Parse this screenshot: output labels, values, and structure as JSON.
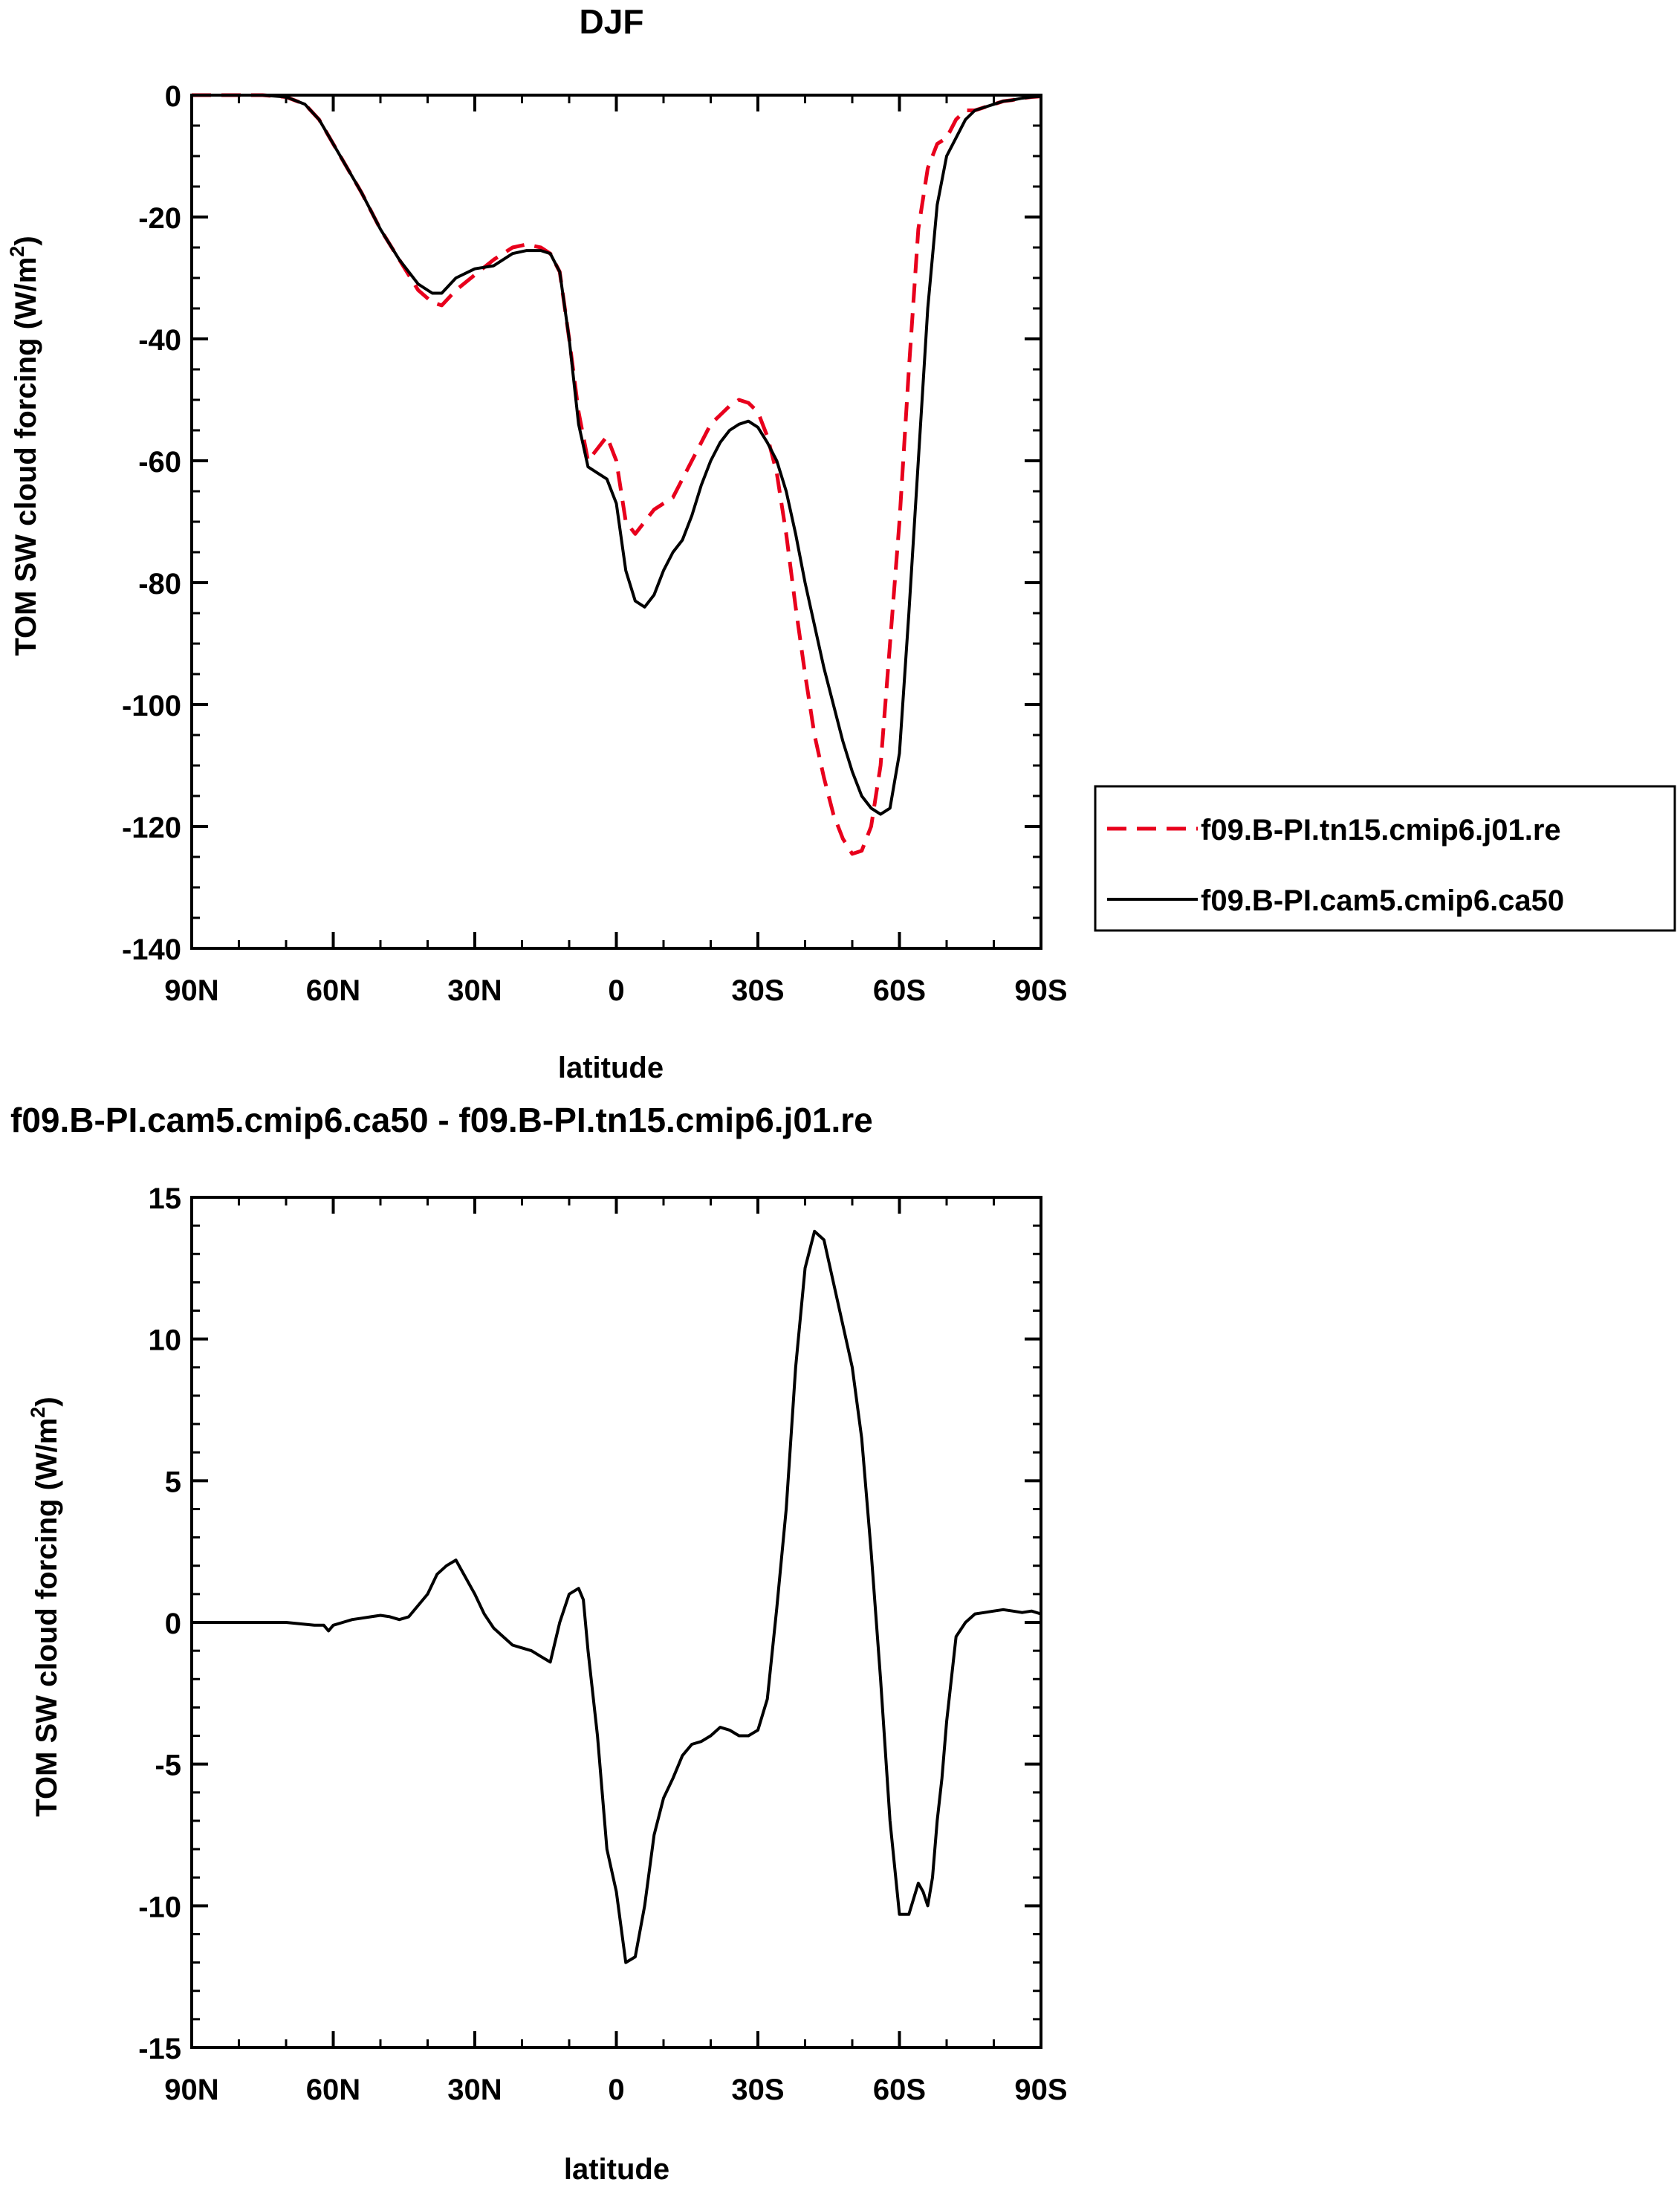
{
  "legend_entries": [
    "f09.B-PI.tn15.cmip6.j01.re",
    "f09.B-PI.cam5.cmip6.ca50"
  ],
  "colors": {
    "series_1": "#e8001c",
    "series_2": "#000000",
    "axes": "#000000"
  },
  "chart_data": [
    {
      "type": "line",
      "title": "DJF",
      "xlabel": "latitude",
      "ylabel": "TOM SW cloud forcing (W/m²)",
      "ylabel_base": "TOM SW cloud forcing (W/m",
      "ylabel_sup": "2",
      "ylabel_end": ")",
      "xlim": [
        90,
        -90
      ],
      "ylim": [
        -140,
        0
      ],
      "x_ticks": [
        90,
        60,
        30,
        0,
        -30,
        -60,
        -90
      ],
      "x_tick_labels": [
        "90N",
        "60N",
        "30N",
        "0",
        "30S",
        "60S",
        "90S"
      ],
      "y_ticks": [
        0,
        -20,
        -40,
        -60,
        -80,
        -100,
        -120,
        -140
      ],
      "y_tick_labels": [
        "0",
        "-20",
        "-40",
        "-60",
        "-80",
        "-100",
        "-120",
        "-140"
      ],
      "legend_position": "right",
      "series": [
        {
          "name": "f09.B-PI.tn15.cmip6.j01.re",
          "style": "dashed",
          "x": [
            90,
            80,
            75,
            70,
            66,
            63,
            60,
            57,
            54,
            50,
            46,
            42,
            39,
            37,
            34,
            30,
            26,
            22,
            19,
            16,
            14,
            12,
            10,
            8,
            6,
            4,
            2,
            0,
            -2,
            -4,
            -6,
            -8,
            -10,
            -12,
            -14,
            -16,
            -18,
            -20,
            -22,
            -24,
            -26,
            -28,
            -30,
            -32,
            -34,
            -36,
            -38,
            -40,
            -42,
            -44,
            -46,
            -48,
            -50,
            -52,
            -54,
            -56,
            -58,
            -60,
            -62,
            -64,
            -66,
            -68,
            -70,
            -72,
            -74,
            -76,
            -78,
            -80,
            -82,
            -84,
            -86,
            -88,
            -90
          ],
          "y": [
            0,
            0,
            0,
            -0.3,
            -1.5,
            -4,
            -8,
            -12,
            -16,
            -22,
            -27,
            -32,
            -34,
            -34.5,
            -32,
            -29.5,
            -27,
            -25,
            -24.5,
            -25,
            -26,
            -29,
            -40,
            -52,
            -60,
            -58,
            -56,
            -60,
            -70,
            -72,
            -70,
            -68,
            -67,
            -66,
            -63,
            -60,
            -57,
            -54,
            -52.5,
            -51,
            -50,
            -50.5,
            -52,
            -56,
            -62,
            -72,
            -84,
            -95,
            -105,
            -112,
            -118,
            -122,
            -124.5,
            -124,
            -120,
            -110,
            -90,
            -70,
            -45,
            -22,
            -12,
            -8,
            -7,
            -4,
            -2.5,
            -2.5,
            -2,
            -1.5,
            -1,
            -0.8,
            -0.5,
            -0.3,
            -0.2
          ]
        },
        {
          "name": "f09.B-PI.cam5.cmip6.ca50",
          "style": "solid",
          "x": [
            90,
            80,
            75,
            70,
            66,
            63,
            60,
            57,
            54,
            50,
            46,
            42,
            39,
            37,
            34,
            30,
            26,
            22,
            19,
            16,
            14,
            12,
            10,
            8,
            6,
            4,
            2,
            0,
            -2,
            -4,
            -6,
            -8,
            -10,
            -12,
            -14,
            -16,
            -18,
            -20,
            -22,
            -24,
            -26,
            -28,
            -30,
            -32,
            -34,
            -36,
            -38,
            -40,
            -42,
            -44,
            -46,
            -48,
            -50,
            -52,
            -54,
            -56,
            -58,
            -60,
            -62,
            -64,
            -66,
            -68,
            -70,
            -72,
            -74,
            -76,
            -78,
            -80,
            -82,
            -84,
            -86,
            -88,
            -90
          ],
          "y": [
            0,
            0,
            0,
            -0.3,
            -1.5,
            -4,
            -8,
            -12,
            -16,
            -22,
            -27,
            -31,
            -32.5,
            -32.5,
            -30,
            -28.5,
            -28,
            -26,
            -25.5,
            -25.5,
            -26,
            -29,
            -40,
            -54,
            -61,
            -62,
            -63,
            -67,
            -78,
            -83,
            -84,
            -82,
            -78,
            -75,
            -73,
            -69,
            -64,
            -60,
            -57,
            -55,
            -54,
            -53.5,
            -54.5,
            -57,
            -60,
            -65,
            -72,
            -80,
            -87,
            -94,
            -100,
            -106,
            -111,
            -115,
            -117,
            -118,
            -117,
            -108,
            -85,
            -60,
            -35,
            -18,
            -10,
            -7,
            -4,
            -2.5,
            -2,
            -1.5,
            -1,
            -0.8,
            -0.5,
            -0.3,
            -0.2
          ]
        }
      ]
    },
    {
      "type": "line",
      "title": "f09.B-PI.cam5.cmip6.ca50 - f09.B-PI.tn15.cmip6.j01.re",
      "xlabel": "latitude",
      "ylabel": "TOM SW cloud forcing (W/m²)",
      "ylabel_base": "TOM SW cloud forcing (W/m",
      "ylabel_sup": "2",
      "ylabel_end": ")",
      "xlim": [
        90,
        -90
      ],
      "ylim": [
        -15,
        15
      ],
      "x_ticks": [
        90,
        60,
        30,
        0,
        -30,
        -60,
        -90
      ],
      "x_tick_labels": [
        "90N",
        "60N",
        "30N",
        "0",
        "30S",
        "60S",
        "90S"
      ],
      "y_ticks": [
        15,
        10,
        5,
        0,
        -5,
        -10,
        -15
      ],
      "y_tick_labels": [
        "15",
        "10",
        "5",
        "0",
        "-5",
        "-10",
        "-15"
      ],
      "series": [
        {
          "x": [
            90,
            80,
            70,
            64,
            62,
            61,
            60,
            58,
            56,
            54,
            52,
            50,
            48,
            46,
            44,
            42,
            40,
            38,
            36,
            34,
            32,
            30,
            28,
            26,
            24,
            22,
            20,
            18,
            16,
            14,
            12,
            10,
            8,
            7,
            6,
            4,
            2,
            0,
            -2,
            -4,
            -6,
            -8,
            -10,
            -12,
            -14,
            -16,
            -18,
            -20,
            -22,
            -24,
            -26,
            -28,
            -30,
            -32,
            -34,
            -36,
            -38,
            -40,
            -42,
            -44,
            -46,
            -48,
            -50,
            -52,
            -54,
            -56,
            -58,
            -60,
            -62,
            -64,
            -65,
            -66,
            -67,
            -68,
            -69,
            -70,
            -72,
            -74,
            -76,
            -78,
            -80,
            -82,
            -84,
            -86,
            -88,
            -90
          ],
          "y": [
            0,
            0,
            0,
            -0.1,
            -0.1,
            -0.3,
            -0.1,
            0,
            0.1,
            0.15,
            0.2,
            0.25,
            0.2,
            0.1,
            0.2,
            0.6,
            1.0,
            1.7,
            2.0,
            2.2,
            1.6,
            1.0,
            0.3,
            -0.2,
            -0.5,
            -0.8,
            -0.9,
            -1.0,
            -1.2,
            -1.4,
            0.0,
            1.0,
            1.2,
            0.8,
            -1.0,
            -4.0,
            -8.0,
            -9.5,
            -12.0,
            -11.8,
            -10.0,
            -7.5,
            -6.2,
            -5.5,
            -4.7,
            -4.3,
            -4.2,
            -4.0,
            -3.7,
            -3.8,
            -4.0,
            -4.0,
            -3.8,
            -2.7,
            0.5,
            4.0,
            9.0,
            12.5,
            13.8,
            13.5,
            12.0,
            10.5,
            9.0,
            6.5,
            2.5,
            -2.0,
            -7.0,
            -10.3,
            -10.3,
            -9.2,
            -9.5,
            -10.0,
            -9.0,
            -7.0,
            -5.5,
            -3.5,
            -0.5,
            0.0,
            0.3,
            0.35,
            0.4,
            0.45,
            0.4,
            0.35,
            0.4,
            0.3
          ]
        }
      ]
    }
  ]
}
